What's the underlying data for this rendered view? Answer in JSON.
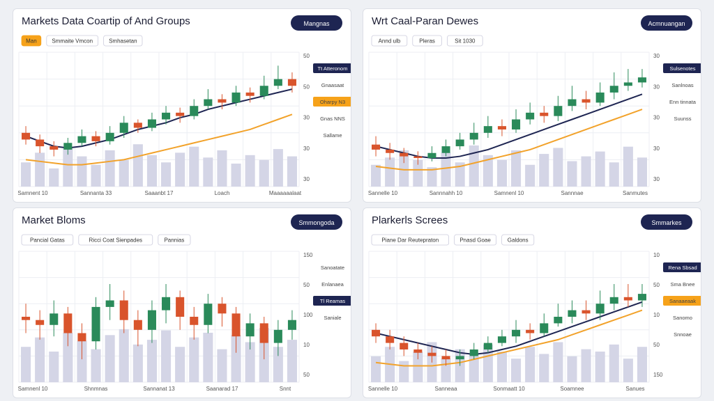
{
  "panels": [
    {
      "title": "Markets Data Coartip of And Groups",
      "button": "Mangnas",
      "chips": [
        {
          "text": "Man",
          "style": "orange"
        },
        {
          "text": "Smmaite Vmcon",
          "style": "plain"
        },
        {
          "text": "Smhasetan",
          "style": "plain"
        }
      ],
      "badges": [
        {
          "text": "Tt Atteronom",
          "style": "dark"
        },
        {
          "text": "Gnaasaat",
          "style": "plain"
        },
        {
          "text": "Oharpy N3",
          "style": "orange"
        },
        {
          "text": "Gnas NNS",
          "style": "plain"
        },
        {
          "text": "Sallame",
          "style": "plain"
        }
      ],
      "axis_labels": [
        "50",
        "50",
        "30",
        "30",
        "30"
      ],
      "x_labels": [
        "Samnent 10",
        "Sannanta 33",
        "Saaanbt 17",
        "Loach",
        "Maaaaaalaat"
      ],
      "open": [
        52,
        48,
        44,
        42,
        46,
        50,
        47,
        52,
        58,
        55,
        60,
        64,
        62,
        68,
        72,
        70,
        76,
        74,
        80,
        84
      ],
      "close": [
        48,
        44,
        42,
        46,
        50,
        47,
        52,
        58,
        55,
        60,
        64,
        62,
        68,
        72,
        70,
        76,
        74,
        80,
        84,
        80
      ],
      "high": [
        56,
        51,
        47,
        49,
        54,
        53,
        56,
        62,
        60,
        64,
        68,
        67,
        72,
        78,
        75,
        80,
        79,
        86,
        92,
        88
      ],
      "low": [
        45,
        40,
        38,
        39,
        44,
        44,
        45,
        49,
        52,
        53,
        57,
        58,
        60,
        66,
        66,
        68,
        70,
        72,
        78,
        76
      ],
      "ma_fast": [
        50,
        47,
        44,
        43,
        44,
        46,
        48,
        51,
        54,
        56,
        58,
        61,
        63,
        66,
        68,
        70,
        72,
        74,
        76,
        78
      ],
      "ma_slow": [
        36,
        35,
        34,
        33,
        33,
        34,
        35,
        36,
        38,
        40,
        42,
        44,
        46,
        48,
        50,
        52,
        54,
        57,
        60,
        63
      ],
      "volume": [
        20,
        28,
        15,
        32,
        25,
        18,
        30,
        22,
        35,
        26,
        20,
        28,
        33,
        24,
        30,
        19,
        26,
        22,
        31,
        25
      ]
    },
    {
      "title": "Wrt Caal-Paran Dewes",
      "button": "Acmnuangan",
      "chips": [
        {
          "text": "Annd ulb",
          "style": "plain"
        },
        {
          "text": "Pleras",
          "style": "plain"
        },
        {
          "text": "Sit 1030",
          "style": "plain"
        }
      ],
      "badges": [
        {
          "text": "Sulsenotes",
          "style": "dark"
        },
        {
          "text": "Sanlnoas",
          "style": "plain"
        },
        {
          "text": "Enn tinnata",
          "style": "plain"
        },
        {
          "text": "Suunss",
          "style": "plain"
        }
      ],
      "axis_labels": [
        "30",
        "30",
        "30",
        "30",
        "30"
      ],
      "x_labels": [
        "Sannelle 10",
        "Sannnahh 10",
        "Samnenl 10",
        "Sannnae",
        "Sanmutes"
      ],
      "open": [
        45,
        42,
        40,
        38,
        37,
        40,
        44,
        48,
        52,
        56,
        54,
        60,
        64,
        62,
        68,
        72,
        70,
        76,
        80,
        82
      ],
      "close": [
        42,
        40,
        38,
        37,
        40,
        44,
        48,
        52,
        56,
        54,
        60,
        64,
        62,
        68,
        72,
        70,
        76,
        80,
        82,
        85
      ],
      "high": [
        50,
        46,
        43,
        41,
        44,
        48,
        52,
        58,
        62,
        60,
        66,
        70,
        68,
        74,
        80,
        77,
        82,
        88,
        90,
        90
      ],
      "low": [
        38,
        36,
        34,
        33,
        35,
        38,
        42,
        45,
        49,
        50,
        52,
        57,
        58,
        59,
        65,
        66,
        68,
        72,
        77,
        79
      ],
      "ma_fast": [
        44,
        42,
        40,
        38,
        37,
        37,
        38,
        40,
        42,
        45,
        48,
        51,
        54,
        57,
        60,
        63,
        66,
        69,
        72,
        75
      ],
      "ma_slow": [
        32,
        31,
        30,
        30,
        30,
        31,
        32,
        34,
        36,
        38,
        40,
        42,
        45,
        48,
        51,
        54,
        57,
        60,
        63,
        66
      ],
      "volume": [
        18,
        24,
        30,
        22,
        16,
        28,
        20,
        34,
        26,
        22,
        30,
        18,
        27,
        32,
        21,
        25,
        29,
        20,
        33,
        24
      ]
    },
    {
      "title": "Market Bloms",
      "button": "Smmongoda",
      "chips": [
        {
          "text": "Pancial Gatas",
          "style": "plain"
        },
        {
          "text": "Ricci Coat Sienpades",
          "style": "plain"
        },
        {
          "text": "Pannias",
          "style": "plain"
        }
      ],
      "badges": [
        {
          "text": "Sanoatate",
          "style": "plain"
        },
        {
          "text": "Enlanaea",
          "style": "plain"
        },
        {
          "text": "Tl Reamas",
          "style": "dark"
        },
        {
          "text": "Saniale",
          "style": "plain"
        }
      ],
      "axis_labels": [
        "150",
        "50",
        "100",
        "10",
        "50"
      ],
      "x_labels": [
        "Samnenl 10",
        "Shnmnas",
        "Sannanat 13",
        "Saanarad 17",
        "Snnt"
      ],
      "open": [
        60,
        58,
        55,
        62,
        50,
        45,
        66,
        70,
        58,
        52,
        64,
        72,
        60,
        55,
        68,
        62,
        48,
        56,
        44,
        52
      ],
      "close": [
        58,
        55,
        62,
        50,
        45,
        66,
        70,
        58,
        52,
        64,
        72,
        60,
        55,
        68,
        62,
        48,
        56,
        44,
        52,
        58
      ],
      "high": [
        68,
        64,
        70,
        66,
        56,
        72,
        80,
        76,
        64,
        70,
        80,
        76,
        66,
        74,
        72,
        66,
        62,
        60,
        58,
        64
      ],
      "low": [
        50,
        46,
        48,
        42,
        34,
        40,
        58,
        50,
        42,
        44,
        56,
        52,
        46,
        50,
        54,
        38,
        40,
        34,
        36,
        46
      ],
      "volume": [
        30,
        38,
        26,
        42,
        35,
        28,
        40,
        45,
        32,
        36,
        44,
        30,
        38,
        42,
        28,
        40,
        34,
        46,
        30,
        36
      ]
    },
    {
      "title": "Plarkerls Screes",
      "button": "Smmarkes",
      "chips": [
        {
          "text": "Piane Dar Reutepraton",
          "style": "plain"
        },
        {
          "text": "Pnasd Goae",
          "style": "plain"
        },
        {
          "text": "Galdons",
          "style": "plain"
        }
      ],
      "badges": [
        {
          "text": "Rena Sbsad",
          "style": "dark"
        },
        {
          "text": "Sma Bnee",
          "style": "plain"
        },
        {
          "text": "Sanaaeaak",
          "style": "orange"
        },
        {
          "text": "Sanomo",
          "style": "plain"
        },
        {
          "text": "Snnoae",
          "style": "plain"
        }
      ],
      "axis_labels": [
        "10",
        "50",
        "10",
        "50",
        "150"
      ],
      "x_labels": [
        "Sannelle 10",
        "Sanneaa",
        "Sonmaatt 10",
        "Soamnee",
        "Sanues"
      ],
      "open": [
        52,
        48,
        44,
        40,
        38,
        36,
        34,
        36,
        40,
        44,
        48,
        52,
        50,
        56,
        60,
        64,
        62,
        68,
        72,
        70
      ],
      "close": [
        48,
        44,
        40,
        38,
        36,
        34,
        36,
        40,
        44,
        48,
        52,
        50,
        56,
        60,
        64,
        62,
        68,
        72,
        70,
        74
      ],
      "high": [
        56,
        52,
        48,
        44,
        42,
        40,
        40,
        44,
        48,
        52,
        58,
        56,
        62,
        68,
        70,
        70,
        76,
        80,
        80,
        80
      ],
      "low": [
        44,
        40,
        36,
        34,
        32,
        30,
        30,
        34,
        38,
        42,
        44,
        46,
        48,
        54,
        56,
        58,
        58,
        64,
        66,
        66
      ],
      "ma_fast": [
        50,
        48,
        46,
        44,
        42,
        40,
        38,
        37,
        38,
        40,
        42,
        45,
        48,
        51,
        54,
        57,
        60,
        63,
        66,
        69
      ],
      "ma_slow": [
        32,
        31,
        30,
        30,
        30,
        31,
        32,
        34,
        36,
        38,
        40,
        42,
        44,
        46,
        49,
        52,
        55,
        58,
        61,
        64
      ],
      "volume": [
        22,
        30,
        18,
        26,
        34,
        20,
        28,
        24,
        32,
        26,
        20,
        30,
        24,
        34,
        22,
        28,
        26,
        32,
        20,
        30
      ]
    }
  ]
}
